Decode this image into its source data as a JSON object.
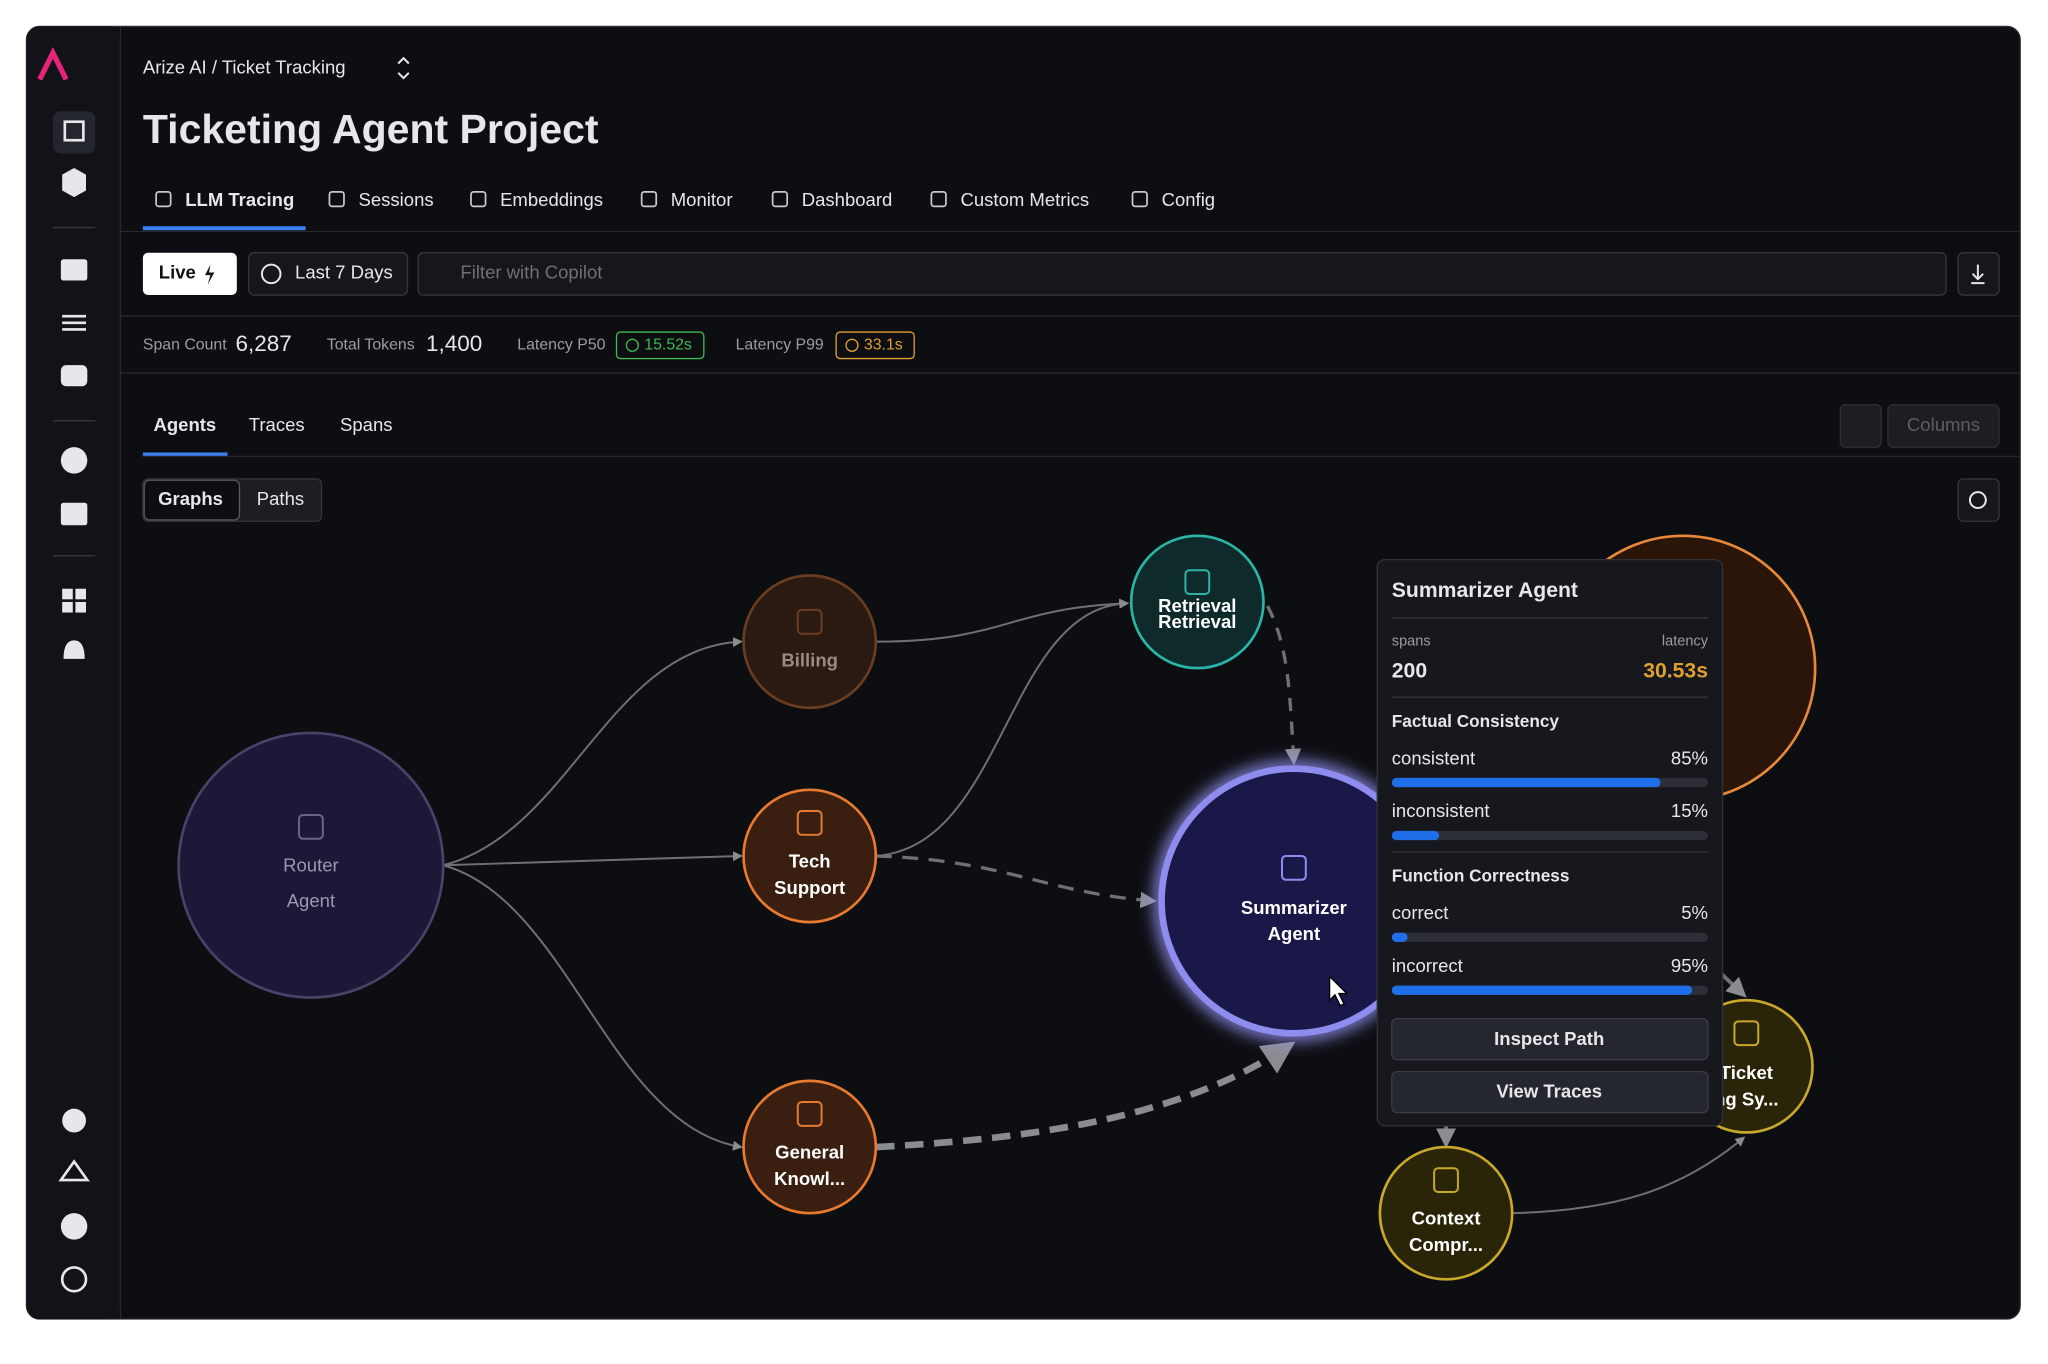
{
  "breadcrumb": "Arize AI / Ticket Tracking",
  "title": "Ticketing Agent Project",
  "tabs": [
    "LLM Tracing",
    "Sessions",
    "Embeddings",
    "Monitor",
    "Dashboard",
    "Custom Metrics",
    "Config"
  ],
  "toolbar": {
    "live": "Live",
    "range": "Last 7 Days",
    "filter_placeholder": "Filter with Copilot"
  },
  "stats": [
    {
      "label": "Span Count",
      "value": "6,287"
    },
    {
      "label": "Total Tokens",
      "value": "1,400"
    },
    {
      "label": "Latency P50",
      "value": "15.52s"
    },
    {
      "label": "Latency P99",
      "value": "33.1s"
    }
  ],
  "subtabs": [
    "Agents",
    "Traces",
    "Spans"
  ],
  "columns_button": "Columns",
  "view_toggle": [
    "Graphs",
    "Paths"
  ],
  "nodes": [
    {
      "label": [
        "Router",
        "Agent"
      ]
    },
    {
      "label": [
        "Billing"
      ]
    },
    {
      "label": [
        "Tech",
        "Support"
      ]
    },
    {
      "label": [
        "General",
        "Knowl..."
      ]
    },
    {
      "label": [
        "Retrieval",
        "Retrieval"
      ]
    },
    {
      "label": [
        "Summarizer",
        "Agent"
      ]
    },
    {
      "label": [
        "Context",
        "Compr..."
      ]
    },
    {
      "label": [
        "Ticket",
        "ng Sy..."
      ]
    }
  ],
  "tooltip": {
    "title": "Summarizer Agent",
    "spans_label": "spans",
    "spans": "200",
    "latency_label": "latency",
    "latency": "30.53s",
    "sections": [
      {
        "title": "Factual Consistency",
        "metrics": [
          {
            "name": "consistent",
            "value": 85,
            "value_label": "85%"
          },
          {
            "name": "inconsistent",
            "value": 15,
            "value_label": "15%"
          }
        ]
      },
      {
        "title": "Function Correctness",
        "metrics": [
          {
            "name": "correct",
            "value": 5,
            "value_label": "5%"
          },
          {
            "name": "incorrect",
            "value": 95,
            "value_label": "95%"
          }
        ]
      }
    ],
    "buttons": [
      "Inspect Path",
      "View Traces"
    ]
  }
}
